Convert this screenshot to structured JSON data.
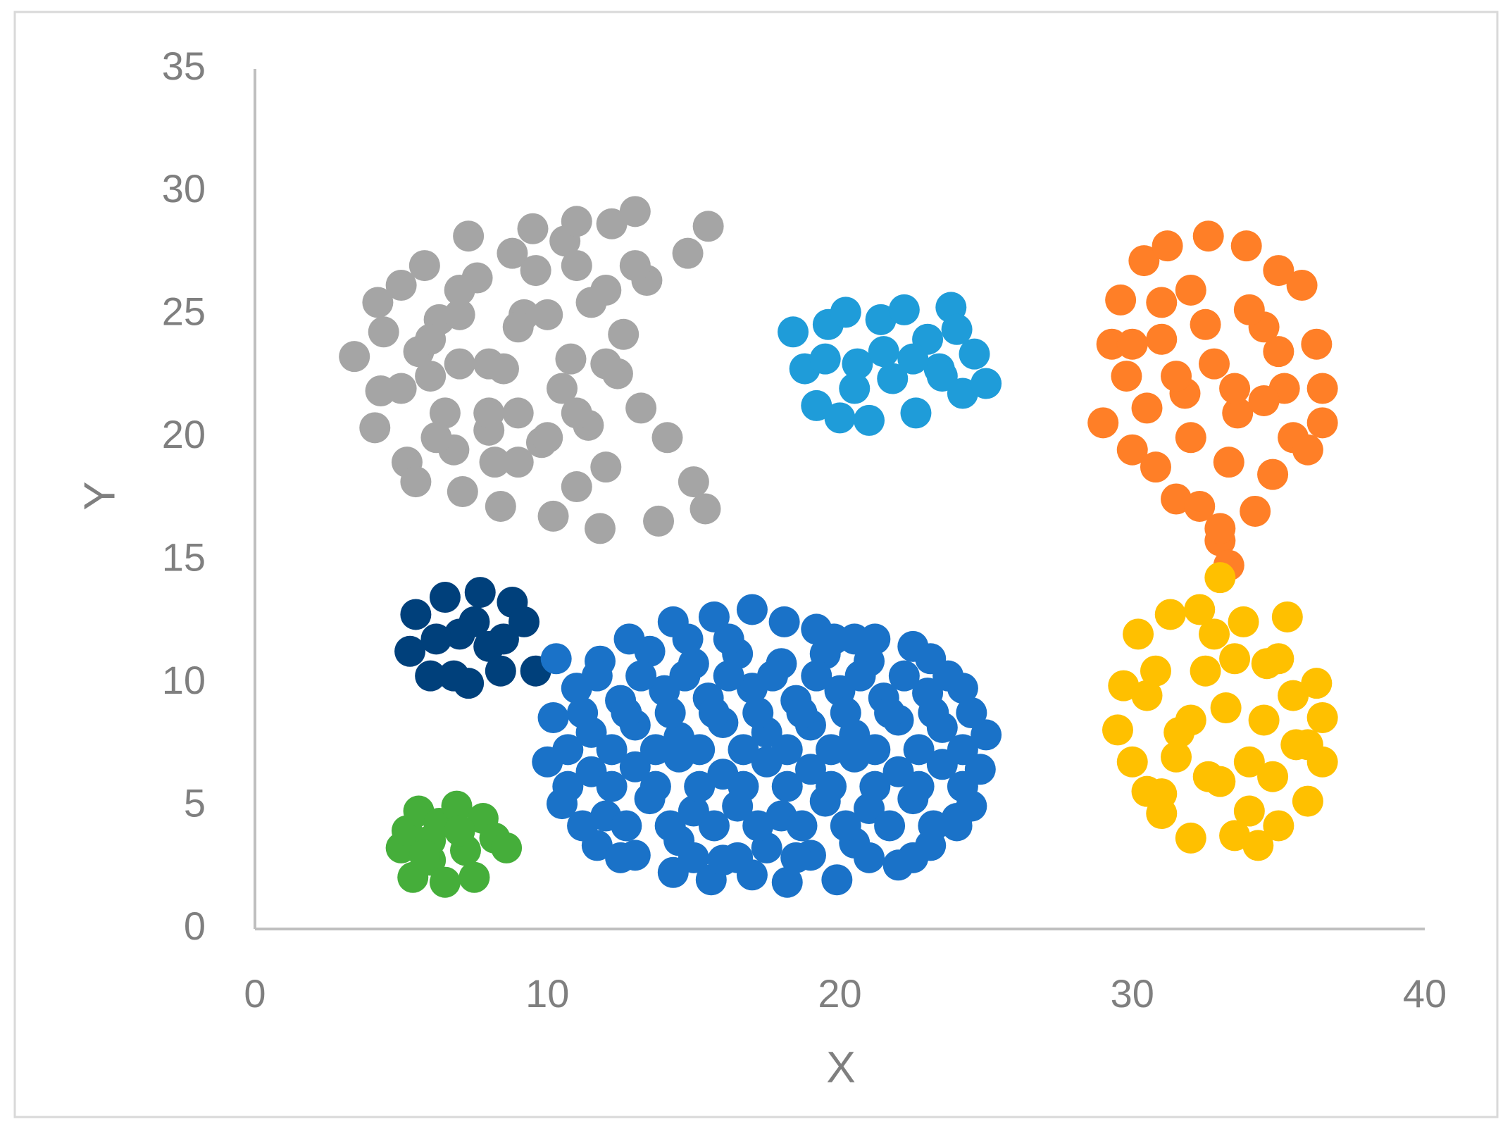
{
  "chart_data": {
    "type": "scatter",
    "x_label": "X",
    "y_label": "Y",
    "xlim": [
      0,
      40
    ],
    "xticks": [
      0,
      10,
      20,
      30,
      40
    ],
    "ylim": [
      0,
      35
    ],
    "yticks": [
      0,
      5,
      10,
      15,
      20,
      25,
      30,
      35
    ],
    "grid": false,
    "series": [
      {
        "color": "#a5a5a5",
        "x": [
          3.4,
          4.2,
          4.4,
          4.1,
          4.3,
          5.0,
          5.2,
          5.5,
          5.8,
          6.0,
          6.3,
          6.8,
          7.1,
          7.3,
          7.6,
          8.0,
          8.4,
          8.8,
          9.2,
          9.5,
          9.8,
          10.2,
          10.6,
          11.0,
          11.4,
          11.8,
          12.2,
          12.6,
          13.0,
          13.4,
          13.8,
          14.1,
          14.8,
          15.0,
          15.4,
          15.5,
          5.6,
          6.5,
          8.5,
          9.0,
          10.5,
          11.5,
          12.0,
          13.2,
          7.0,
          8.2,
          9.6,
          10.8,
          12.4,
          6.2,
          5,
          6,
          7,
          8,
          9,
          10,
          11,
          12,
          13,
          9,
          10,
          11,
          7,
          8,
          11,
          12
        ],
        "y": [
          23.3,
          25.5,
          24.3,
          20.4,
          21.9,
          26.2,
          19.0,
          18.2,
          27.0,
          22.5,
          24.8,
          19.5,
          17.8,
          28.2,
          26.5,
          20.3,
          17.2,
          27.5,
          25.0,
          28.5,
          19.8,
          16.8,
          28.0,
          28.8,
          20.5,
          16.3,
          28.7,
          24.2,
          29.2,
          26.4,
          16.6,
          20.0,
          27.5,
          18.2,
          17.1,
          28.6,
          23.5,
          21.0,
          22.8,
          24.5,
          22.0,
          25.5,
          18.8,
          21.2,
          25.0,
          19.0,
          26.8,
          23.2,
          22.6,
          20.0,
          22,
          24,
          26,
          23,
          21,
          25,
          27,
          23,
          27,
          19,
          20,
          18,
          23,
          21,
          21,
          26
        ]
      },
      {
        "color": "#1f9cd9",
        "x": [
          18.4,
          18.8,
          19.2,
          19.6,
          20.0,
          20.2,
          20.6,
          21.0,
          21.4,
          21.8,
          22.2,
          22.6,
          23.0,
          23.4,
          23.8,
          24.2,
          24.6,
          25.0,
          19.5,
          20.5,
          21.5,
          22.5,
          23.5,
          24.0
        ],
        "y": [
          24.3,
          22.8,
          21.3,
          24.6,
          20.8,
          25.1,
          23.0,
          20.7,
          24.8,
          22.4,
          25.2,
          21.0,
          24.0,
          22.8,
          25.3,
          21.8,
          23.4,
          22.2,
          23.2,
          22.0,
          23.5,
          23.2,
          22.5,
          24.4
        ]
      },
      {
        "color": "#ff7f27",
        "x": [
          29.0,
          29.3,
          29.6,
          29.8,
          30.0,
          30.4,
          30.8,
          31.0,
          31.2,
          31.5,
          31.8,
          32.0,
          32.3,
          32.6,
          32.8,
          33.0,
          33.3,
          33.6,
          33.9,
          34.2,
          34.5,
          34.8,
          35.0,
          35.2,
          35.5,
          35.8,
          36.0,
          36.3,
          36.5,
          36.5,
          33.0,
          33.3,
          32.5,
          31.5,
          30.5,
          34.0,
          33.5,
          35.0,
          32.0,
          31.0,
          34.5,
          30.0
        ],
        "y": [
          20.6,
          23.8,
          25.6,
          22.5,
          19.5,
          27.2,
          18.8,
          24.0,
          27.8,
          17.5,
          21.8,
          26.0,
          17.2,
          28.2,
          23.0,
          15.8,
          14.8,
          21.0,
          27.8,
          17.0,
          24.5,
          18.5,
          26.8,
          22.0,
          20.0,
          26.2,
          19.5,
          23.8,
          22.0,
          20.6,
          16.3,
          19.0,
          24.6,
          22.5,
          21.2,
          25.2,
          22.0,
          23.5,
          20.0,
          25.5,
          21.5,
          23.8
        ]
      },
      {
        "color": "#00407b",
        "x": [
          5.3,
          5.5,
          6.0,
          6.5,
          6.8,
          7.0,
          7.3,
          7.7,
          8.0,
          8.4,
          8.8,
          9.2,
          9.6,
          6.2,
          7.5,
          8.5
        ],
        "y": [
          11.3,
          12.8,
          10.3,
          13.5,
          10.3,
          12.0,
          10.0,
          13.7,
          11.5,
          10.5,
          13.3,
          12.5,
          10.5,
          11.8,
          12.5,
          11.8
        ]
      },
      {
        "color": "#1a72c8",
        "x": [
          14.3,
          15.6,
          17.0,
          18.2,
          19.9,
          11.7,
          13.0,
          14.5,
          16.0,
          17.5,
          19.0,
          20.5,
          22.0,
          23.1,
          10.5,
          12.0,
          13.5,
          15.0,
          16.5,
          18.0,
          19.5,
          21.0,
          22.5,
          24.0,
          24.5,
          10.0,
          11.5,
          13.0,
          14.5,
          16.0,
          17.5,
          19.0,
          20.5,
          22.0,
          23.5,
          24.8,
          10.2,
          11.5,
          13.0,
          14.5,
          16.0,
          17.5,
          19.0,
          20.5,
          22.0,
          23.5,
          25.0,
          11.0,
          12.5,
          14.0,
          15.5,
          17.0,
          18.5,
          20.0,
          21.5,
          23.0,
          24.2,
          10.3,
          11.8,
          13.5,
          15.0,
          16.5,
          18.0,
          19.5,
          21.0,
          22.5,
          23.1,
          12.8,
          14.3,
          15.7,
          17.0,
          18.1,
          19.2,
          21.2,
          11.2,
          12.7,
          14.2,
          15.7,
          17.2,
          18.7,
          20.2,
          21.7,
          23.2,
          24.0,
          10.7,
          12.2,
          13.7,
          15.2,
          16.7,
          18.2,
          19.7,
          21.2,
          22.7,
          24.2,
          10.7,
          12.2,
          13.7,
          15.2,
          16.7,
          18.2,
          19.7,
          21.2,
          22.7,
          24.2,
          11.2,
          12.7,
          14.2,
          15.7,
          17.2,
          18.7,
          20.2,
          21.7,
          23.2,
          24.5,
          11.7,
          13.2,
          14.7,
          16.2,
          17.7,
          19.2,
          20.7,
          22.2,
          23.7,
          12.5,
          15.0,
          16.5,
          18.5,
          21.0,
          22.5,
          14.8,
          16.2,
          19.8,
          20.5
        ],
        "y": [
          2.3,
          2.0,
          2.2,
          1.9,
          2.0,
          3.4,
          3.0,
          3.6,
          2.8,
          3.3,
          3.0,
          3.5,
          2.6,
          3.4,
          5.1,
          4.6,
          5.3,
          4.8,
          5.0,
          4.6,
          5.2,
          4.9,
          5.3,
          4.5,
          5.0,
          6.8,
          6.4,
          6.6,
          7.0,
          6.3,
          6.8,
          6.5,
          7.0,
          6.4,
          6.7,
          6.5,
          8.6,
          8.0,
          8.3,
          7.8,
          8.4,
          8.0,
          8.3,
          7.9,
          8.5,
          8.2,
          7.9,
          9.8,
          9.3,
          9.7,
          9.4,
          9.8,
          9.3,
          9.7,
          9.4,
          9.6,
          9.8,
          11.0,
          10.9,
          11.3,
          10.8,
          11.2,
          10.8,
          11.2,
          10.9,
          11.5,
          11.0,
          11.8,
          12.5,
          12.7,
          13.0,
          12.5,
          12.2,
          11.8,
          4.2,
          4.2,
          4.2,
          4.2,
          4.2,
          4.2,
          4.2,
          4.2,
          4.2,
          4.2,
          5.8,
          5.8,
          5.8,
          5.8,
          5.8,
          5.8,
          5.8,
          5.8,
          5.8,
          5.8,
          7.3,
          7.3,
          7.3,
          7.3,
          7.3,
          7.3,
          7.3,
          7.3,
          7.3,
          7.3,
          8.8,
          8.8,
          8.8,
          8.8,
          8.8,
          8.8,
          8.8,
          8.8,
          8.8,
          8.8,
          10.3,
          10.3,
          10.3,
          10.3,
          10.3,
          10.3,
          10.3,
          10.3,
          10.3,
          2.9,
          2.9,
          2.9,
          2.9,
          2.9,
          2.9,
          11.8,
          11.8,
          11.8,
          11.8
        ]
      },
      {
        "color": "#45ae3a",
        "x": [
          5.0,
          5.2,
          5.4,
          5.6,
          6.0,
          6.3,
          6.5,
          6.9,
          7.2,
          7.5,
          7.8,
          8.2,
          8.6,
          6.0,
          7.0,
          5.8
        ],
        "y": [
          3.3,
          4.0,
          2.1,
          4.8,
          2.8,
          4.3,
          1.9,
          5.0,
          3.2,
          2.1,
          4.5,
          3.7,
          3.3,
          3.6,
          4.0,
          3.0
        ]
      },
      {
        "color": "#ffc000",
        "x": [
          29.5,
          29.7,
          30.0,
          30.2,
          30.5,
          30.8,
          31.0,
          31.3,
          31.6,
          32.0,
          32.3,
          32.6,
          33.0,
          33.2,
          33.5,
          33.8,
          34.0,
          34.3,
          34.6,
          35.0,
          35.3,
          35.6,
          36.0,
          36.3,
          36.5,
          36.5,
          31.5,
          32.5,
          33.5,
          34.5,
          35.5,
          31.0,
          32.0,
          33.0,
          34.0,
          35.0,
          30.5,
          32.8,
          34.8,
          36.0
        ],
        "y": [
          8.1,
          9.9,
          6.8,
          12.0,
          5.6,
          10.5,
          4.7,
          12.8,
          8.0,
          3.7,
          13.0,
          6.2,
          14.3,
          9.0,
          3.8,
          12.5,
          6.8,
          3.4,
          10.8,
          4.2,
          12.7,
          7.5,
          5.2,
          10.0,
          8.6,
          6.8,
          7.0,
          10.5,
          11.0,
          8.5,
          9.5,
          5.5,
          8.5,
          6.0,
          4.8,
          11.0,
          9.5,
          12.0,
          6.2,
          7.5
        ]
      }
    ]
  }
}
